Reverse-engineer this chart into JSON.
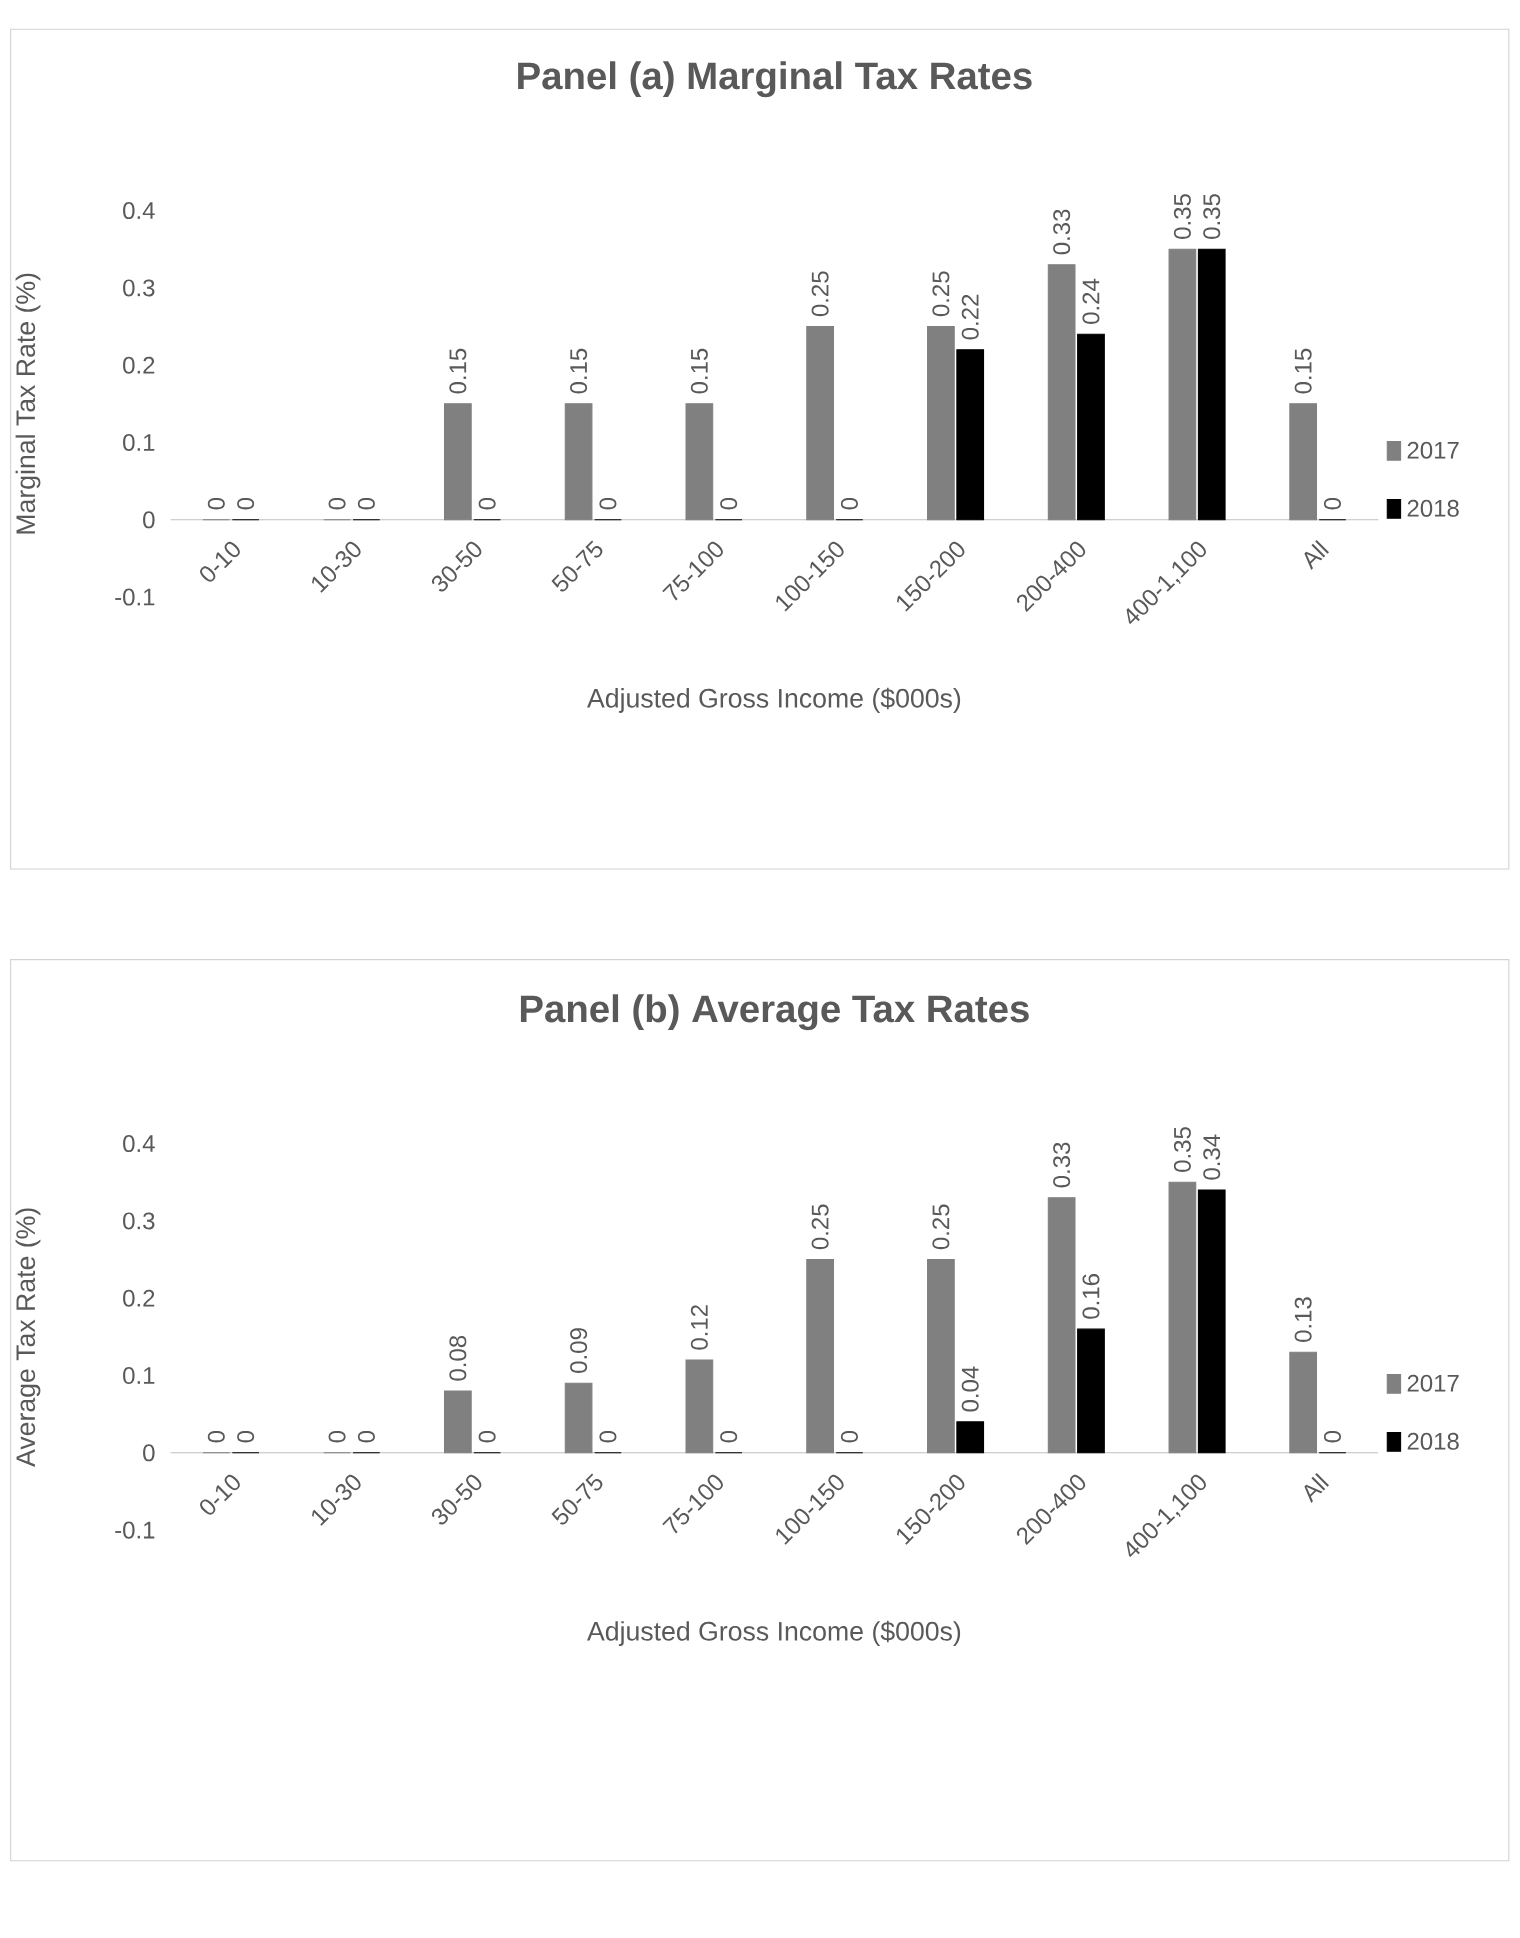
{
  "chart_data": [
    {
      "type": "bar",
      "title": "Panel (a)  Marginal Tax Rates",
      "xlabel": "Adjusted Gross Income ($000s)",
      "ylabel": "Marginal Tax Rate (%)",
      "categories": [
        "0-10",
        "10-30",
        "30-50",
        "50-75",
        "75-100",
        "100-150",
        "150-200",
        "200-400",
        "400-1,100",
        "All"
      ],
      "series": [
        {
          "name": "2017",
          "color": "#808080",
          "values": [
            0,
            0,
            0.15,
            0.15,
            0.15,
            0.25,
            0.25,
            0.33,
            0.35,
            0.15
          ]
        },
        {
          "name": "2018",
          "color": "#000000",
          "values": [
            0,
            0,
            0,
            0,
            0,
            0,
            0.22,
            0.24,
            0.35,
            0
          ]
        }
      ],
      "ylim": [
        -0.1,
        0.4
      ],
      "yticks": [
        -0.1,
        0,
        0.1,
        0.2,
        0.3,
        0.4
      ],
      "data_labels": true,
      "legend": "right"
    },
    {
      "type": "bar",
      "title": "Panel (b)  Average Tax Rates",
      "xlabel": "Adjusted Gross Income ($000s)",
      "ylabel": "Average Tax Rate (%)",
      "categories": [
        "0-10",
        "10-30",
        "30-50",
        "50-75",
        "75-100",
        "100-150",
        "150-200",
        "200-400",
        "400-1,100",
        "All"
      ],
      "series": [
        {
          "name": "2017",
          "color": "#808080",
          "values": [
            0,
            0,
            0.08,
            0.09,
            0.12,
            0.25,
            0.25,
            0.33,
            0.35,
            0.13
          ]
        },
        {
          "name": "2018",
          "color": "#000000",
          "values": [
            0,
            0,
            0,
            0,
            0,
            0,
            0.04,
            0.16,
            0.34,
            0
          ]
        }
      ],
      "ylim": [
        -0.1,
        0.4
      ],
      "yticks": [
        -0.1,
        0,
        0.1,
        0.2,
        0.3,
        0.4
      ],
      "data_labels": true,
      "legend": "right"
    }
  ]
}
